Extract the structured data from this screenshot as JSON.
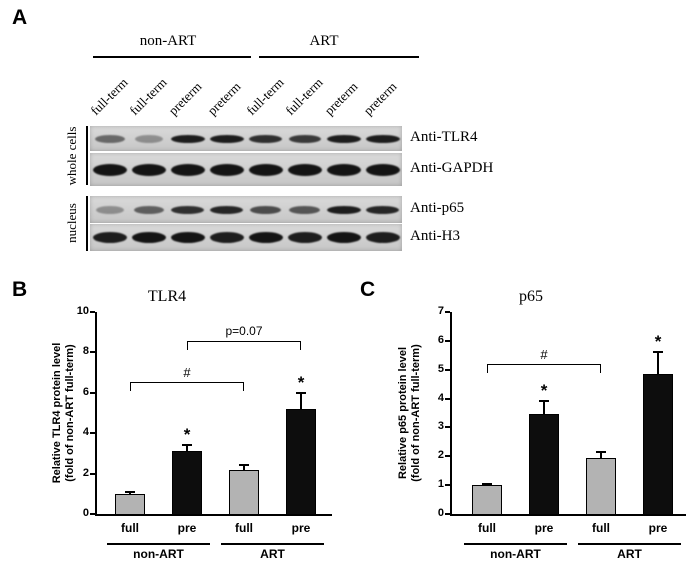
{
  "figure": {
    "panel_a": {
      "label": "A",
      "groups": [
        "non-ART",
        "ART"
      ],
      "lane_labels": [
        "full-term",
        "full-term",
        "preterm",
        "preterm",
        "full-term",
        "full-term",
        "preterm",
        "preterm"
      ],
      "side_labels": [
        "whole cells",
        "nucleus"
      ],
      "blots": [
        {
          "antibody": "Anti-TLR4",
          "compartment": "whole cells",
          "band_intensities": [
            0.55,
            0.35,
            0.95,
            0.95,
            0.85,
            0.8,
            0.95,
            0.95
          ]
        },
        {
          "antibody": "Anti-GAPDH",
          "compartment": "whole cells",
          "band_intensities": [
            1,
            1,
            1,
            1,
            1,
            1,
            1,
            1
          ]
        },
        {
          "antibody": "Anti-p65",
          "compartment": "nucleus",
          "band_intensities": [
            0.35,
            0.6,
            0.85,
            0.9,
            0.7,
            0.65,
            0.95,
            0.9
          ]
        },
        {
          "antibody": "Anti-H3",
          "compartment": "nucleus",
          "band_intensities": [
            0.95,
            1,
            1,
            0.95,
            1,
            0.95,
            1,
            0.95
          ]
        }
      ]
    }
  },
  "chart_data": [
    {
      "type": "bar",
      "panel": "B",
      "title": "TLR4",
      "categories": [
        "full",
        "pre",
        "full",
        "pre"
      ],
      "group_labels": [
        "non-ART",
        "ART"
      ],
      "values": [
        1.0,
        3.1,
        2.2,
        5.2
      ],
      "errors": [
        0.1,
        0.3,
        0.25,
        0.8
      ],
      "bar_colors": [
        "#b3b3b3",
        "#0d0d0d",
        "#b3b3b3",
        "#0d0d0d"
      ],
      "ylabel": "Relative TLR4 protein level\n(fold of non-ART full-term)",
      "ylim": [
        0,
        10
      ],
      "yticks": [
        0,
        2,
        4,
        6,
        8,
        10
      ],
      "grid": false,
      "legend": "none",
      "sig_markers": [
        {
          "bar": 1,
          "label": "*"
        },
        {
          "bar": 3,
          "label": "*"
        }
      ],
      "brackets": [
        {
          "from": 0,
          "to": 2,
          "label": "#",
          "y": 6.55
        },
        {
          "from": 1,
          "to": 3,
          "label": "p=0.07",
          "y": 8.55
        }
      ]
    },
    {
      "type": "bar",
      "panel": "C",
      "title": "p65",
      "categories": [
        "full",
        "pre",
        "full",
        "pre"
      ],
      "group_labels": [
        "non-ART",
        "ART"
      ],
      "values": [
        1.0,
        3.45,
        1.95,
        4.85
      ],
      "errors": [
        0.05,
        0.45,
        0.2,
        0.75
      ],
      "bar_colors": [
        "#b3b3b3",
        "#0d0d0d",
        "#b3b3b3",
        "#0d0d0d"
      ],
      "ylabel": "Relative p65 protein level\n(fold of non-ART full-term)",
      "ylim": [
        0,
        7
      ],
      "yticks": [
        0,
        1,
        2,
        3,
        4,
        5,
        6,
        7
      ],
      "grid": false,
      "legend": "none",
      "sig_markers": [
        {
          "bar": 1,
          "label": "*"
        },
        {
          "bar": 3,
          "label": "*"
        }
      ],
      "brackets": [
        {
          "from": 0,
          "to": 2,
          "label": "#",
          "y": 5.2
        }
      ]
    }
  ]
}
